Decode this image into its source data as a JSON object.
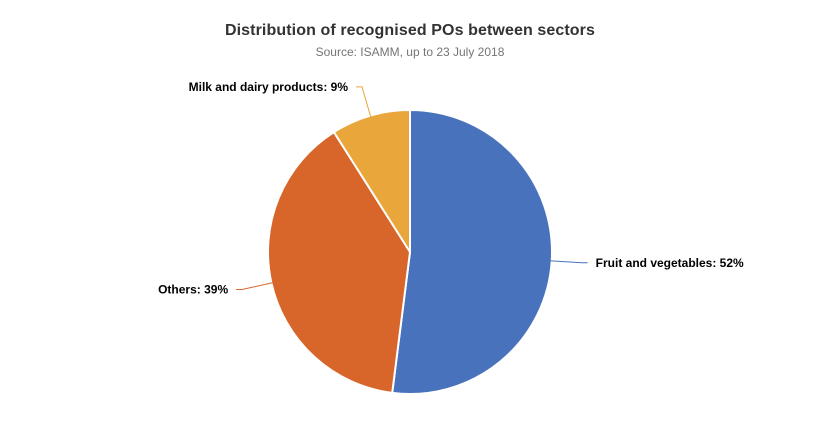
{
  "chart_data": {
    "type": "pie",
    "title": "Distribution of recognised POs between sectors",
    "subtitle": "Source: ISAMM, up to 23 July 2018",
    "start_angle_deg": 0,
    "direction": "clockwise",
    "legend": "none",
    "data_labels": "outside-with-leader-lines",
    "slice_border_color": "#FFFFFF",
    "label_color": "#000000",
    "slices": [
      {
        "label": "Fruit and vegetables",
        "value": 52,
        "unit": "%",
        "color": "#4873BC",
        "display": "Fruit and vegetables: 52%"
      },
      {
        "label": "Others",
        "value": 39,
        "unit": "%",
        "color": "#D8662B",
        "display": "Others: 39%"
      },
      {
        "label": "Milk and dairy products",
        "value": 9,
        "unit": "%",
        "color": "#E9A63B",
        "display": "Milk and dairy products: 9%"
      }
    ]
  }
}
